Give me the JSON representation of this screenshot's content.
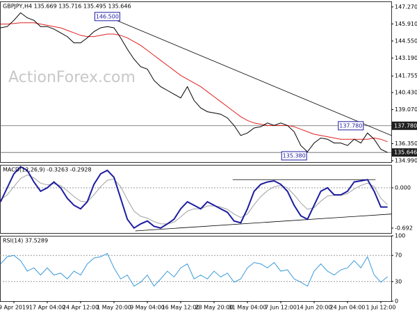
{
  "chart_data": [
    {
      "type": "line",
      "title": "GBPJPY,H4 135.669 135.716 135.495 135.646",
      "watermark": "ActionForex.com",
      "series": [
        {
          "color": "#000000",
          "values": [
            145.6,
            145.7,
            146.2,
            146.8,
            146.4,
            146.2,
            145.7,
            145.7,
            145.5,
            145.2,
            144.9,
            144.4,
            144.4,
            144.8,
            145.3,
            145.6,
            145.7,
            145.6,
            144.8,
            143.9,
            143.1,
            142.5,
            142.3,
            141.4,
            140.9,
            140.6,
            140.3,
            140.0,
            140.9,
            139.8,
            139.2,
            138.9,
            138.8,
            138.7,
            138.4,
            137.8,
            137.0,
            137.2,
            137.6,
            137.7,
            138.0,
            137.8,
            138.0,
            137.8,
            137.3,
            136.2,
            135.7,
            136.4,
            136.8,
            136.7,
            136.4,
            136.4,
            136.2,
            136.7,
            136.4,
            137.2,
            136.7,
            135.9,
            135.646
          ]
        },
        {
          "color": "#e02020",
          "values": [
            145.9,
            145.9,
            145.95,
            146.0,
            146.0,
            146.0,
            145.9,
            145.8,
            145.7,
            145.6,
            145.4,
            145.2,
            145.0,
            144.9,
            144.9,
            145.0,
            145.1,
            145.1,
            145.0,
            144.8,
            144.5,
            144.2,
            143.8,
            143.4,
            143.0,
            142.6,
            142.2,
            141.8,
            141.5,
            141.2,
            140.9,
            140.5,
            140.1,
            139.7,
            139.3,
            138.9,
            138.5,
            138.2,
            138.0,
            137.9,
            137.8,
            137.8,
            137.8,
            137.8,
            137.7,
            137.5,
            137.3,
            137.1,
            137.0,
            136.9,
            136.8,
            136.7,
            136.7,
            136.7,
            136.7,
            136.7,
            136.8,
            136.7,
            136.5
          ]
        }
      ],
      "ylim": [
        134.88,
        147.71
      ],
      "yticks": [
        {
          "value": 147.27,
          "label": "147.270"
        },
        {
          "value": 145.91,
          "label": "145.910"
        },
        {
          "value": 144.55,
          "label": "144.550"
        },
        {
          "value": 143.19,
          "label": "143.190"
        },
        {
          "value": 141.755,
          "label": "141.755"
        },
        {
          "value": 140.43,
          "label": "140.430"
        },
        {
          "value": 139.07,
          "label": "139.070"
        },
        {
          "value": 136.35,
          "label": "136.350"
        },
        {
          "value": 134.99,
          "label": "134.990"
        }
      ],
      "levels": [
        {
          "value": 137.78,
          "label": "137.780"
        },
        {
          "value": 135.646,
          "label": "135.646"
        }
      ],
      "annotations": [
        {
          "value": 146.5,
          "label": "146.500",
          "x": 16
        },
        {
          "value": 137.78,
          "label": "137.780",
          "x": 52.5
        },
        {
          "value": 135.38,
          "label": "135.380",
          "x": 44
        }
      ],
      "trendlines": [
        {
          "x": [
            16,
            58.6
          ],
          "y": [
            146.5,
            137.0
          ]
        }
      ]
    },
    {
      "type": "line",
      "title": "MACD(12,26,9) -0.3263 -0.2928",
      "series": [
        {
          "color": "#1c1ca0",
          "values": [
            -0.24,
            0,
            0.24,
            0.36,
            0.3,
            0.1,
            -0.06,
            0,
            0.1,
            0,
            -0.18,
            -0.3,
            -0.36,
            -0.24,
            0.06,
            0.24,
            0.3,
            0.18,
            -0.18,
            -0.54,
            -0.69,
            -0.62,
            -0.57,
            -0.66,
            -0.69,
            -0.62,
            -0.54,
            -0.36,
            -0.24,
            -0.3,
            -0.36,
            -0.24,
            -0.3,
            -0.36,
            -0.42,
            -0.57,
            -0.6,
            -0.36,
            -0.06,
            0.06,
            0.1,
            0.12,
            0.06,
            -0.06,
            -0.3,
            -0.48,
            -0.54,
            -0.3,
            -0.06,
            0,
            -0.12,
            -0.12,
            -0.06,
            0.1,
            0.12,
            0.14,
            -0.06,
            -0.33,
            -0.33
          ]
        },
        {
          "color": "#a0a0a0",
          "values": [
            -0.2,
            -0.12,
            0.02,
            0.16,
            0.22,
            0.17,
            0.08,
            0.05,
            0.07,
            0.04,
            -0.05,
            -0.15,
            -0.23,
            -0.24,
            -0.12,
            0.02,
            0.13,
            0.15,
            0.02,
            -0.2,
            -0.4,
            -0.49,
            -0.52,
            -0.58,
            -0.62,
            -0.62,
            -0.59,
            -0.5,
            -0.4,
            -0.36,
            -0.36,
            -0.31,
            -0.31,
            -0.33,
            -0.37,
            -0.45,
            -0.51,
            -0.45,
            -0.29,
            -0.15,
            -0.05,
            0.02,
            0.04,
            0,
            -0.12,
            -0.26,
            -0.37,
            -0.34,
            -0.23,
            -0.14,
            -0.13,
            -0.13,
            -0.1,
            -0.02,
            0.04,
            0.08,
            0.02,
            -0.18,
            -0.29
          ]
        }
      ],
      "ylim": [
        -0.776,
        0.394
      ],
      "yticks": [
        {
          "value": 0,
          "label": "0.000"
        },
        {
          "value": -0.692,
          "label": "-0.692"
        }
      ],
      "levels": [
        0
      ],
      "trendlines": [
        {
          "x": [
            34.8,
            56.2
          ],
          "y": [
            0.14,
            0.14
          ]
        },
        {
          "x": [
            20.2,
            58.6
          ],
          "y": [
            -0.74,
            -0.45
          ]
        }
      ]
    },
    {
      "type": "line",
      "title": "RSI(14) 37.5289",
      "series": [
        {
          "color": "#3a9ad9",
          "values": [
            57,
            68,
            70,
            62,
            46,
            51,
            40,
            51,
            40,
            43,
            34,
            46,
            40,
            57,
            66,
            68,
            73,
            51,
            34,
            40,
            23,
            29,
            40,
            23,
            34,
            46,
            37,
            51,
            57,
            34,
            40,
            34,
            46,
            37,
            43,
            29,
            34,
            51,
            59,
            57,
            51,
            59,
            46,
            48,
            34,
            29,
            23,
            46,
            57,
            46,
            40,
            48,
            51,
            62,
            51,
            68,
            40,
            29,
            37.5289
          ]
        }
      ],
      "ylim": [
        0,
        100
      ],
      "yticks": [
        100,
        70,
        30,
        0
      ],
      "levels": [
        30,
        70
      ],
      "categories": [
        null,
        null,
        "9 Apr 2019",
        null,
        null,
        null,
        null,
        "17 Apr 04:00",
        null,
        null,
        null,
        null,
        "24 Apr 12:00",
        null,
        null,
        null,
        null,
        "1 May 20:00",
        null,
        null,
        null,
        null,
        "9 May 04:00",
        null,
        null,
        null,
        null,
        "16 May 12:00",
        null,
        null,
        null,
        null,
        "23 May 20:00",
        null,
        null,
        null,
        null,
        "31 May 04:00",
        null,
        null,
        null,
        null,
        "7 Jun 12:00",
        null,
        null,
        null,
        null,
        "14 Jun 20:00",
        null,
        null,
        null,
        null,
        "24 Jun 04:00",
        null,
        null,
        null,
        null,
        "1 Jul 12:00",
        null
      ]
    }
  ]
}
